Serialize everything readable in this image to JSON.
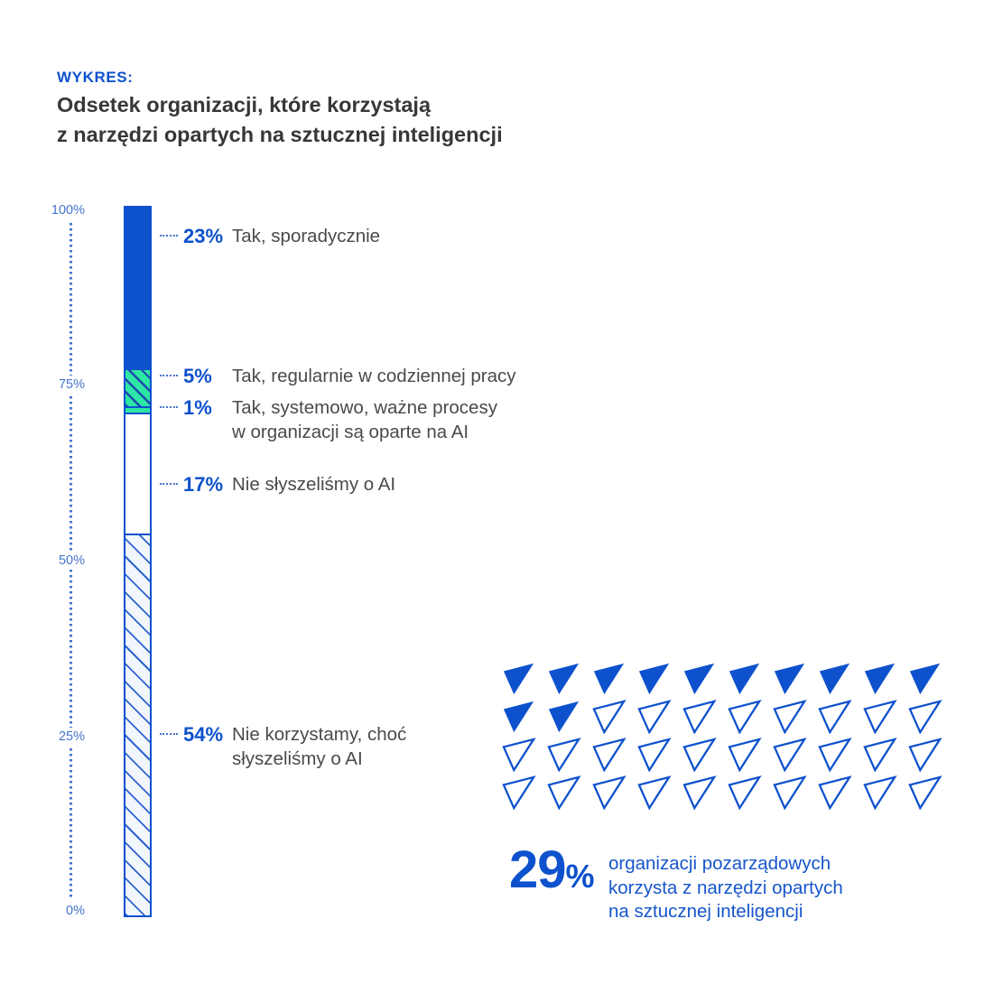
{
  "header": {
    "kicker": "WYKRES:",
    "title_line1": "Odsetek organizacji, które korzystają",
    "title_line2": "z narzędzi opartych na sztucznej inteligencji"
  },
  "colors": {
    "royal_blue": "#0d51cd",
    "axis_blue": "#4674cc",
    "mint_green": "#2ee6a3",
    "hatch_green_line": "#1c47b0",
    "hatch_light_line": "#2e62cf",
    "title_text": "#37373a",
    "body_text": "#4a4a4d"
  },
  "chart_data": {
    "type": "bar",
    "subtype": "single-stacked-vertical-bar-with-pictogram",
    "title": "Odsetek organizacji, które korzystają z narzędzi opartych na sztucznej inteligencji",
    "ylabel": "",
    "xlabel": "",
    "ylim": [
      0,
      100
    ],
    "unit": "%",
    "grid": false,
    "axis_ticks": [
      "100%",
      "75%",
      "50%",
      "25%",
      "0%"
    ],
    "segments": [
      {
        "value": 23,
        "pct_label": "23%",
        "label_line1": "Tak, sporadycznie",
        "label_line2": "",
        "style": "solid-blue"
      },
      {
        "value": 5,
        "pct_label": "5%",
        "label_line1": "Tak, regularnie w codziennej pracy",
        "label_line2": "",
        "style": "hatched-green"
      },
      {
        "value": 1,
        "pct_label": "1%",
        "label_line1": "Tak, systemowo, ważne procesy",
        "label_line2": "w organizacji są oparte na AI",
        "style": "solid-green"
      },
      {
        "value": 17,
        "pct_label": "17%",
        "label_line1": "Nie słyszeliśmy o AI",
        "label_line2": "",
        "style": "outline-white"
      },
      {
        "value": 54,
        "pct_label": "54%",
        "label_line1": "Nie korzystamy, choć",
        "label_line2": "słyszeliśmy o AI",
        "style": "hatched-white"
      }
    ],
    "pictogram": {
      "icon": "triangle-down",
      "rows": 4,
      "columns": 10,
      "total": 40,
      "filled": 12
    },
    "callout": {
      "number": "29",
      "percent_sign": "%",
      "line1": "organizacji pozarządowych",
      "line2": "korzysta z narzędzi opartych",
      "line3": "na sztucznej inteligencji"
    }
  }
}
